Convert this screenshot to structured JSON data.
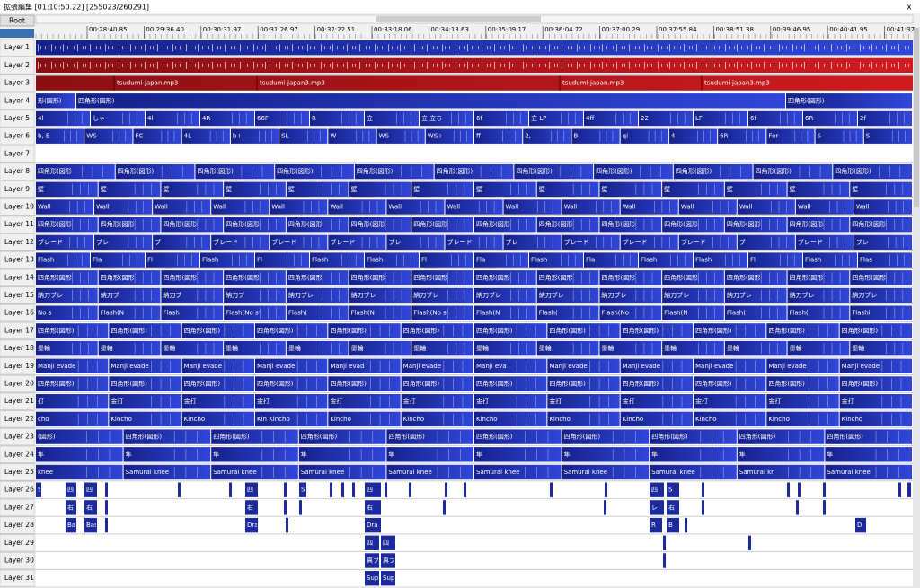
{
  "window": {
    "title": "拡張編集 [01:10:50.22] [255023/260291]",
    "close": "x"
  },
  "toolbar": {
    "root": "Root"
  },
  "ruler": {
    "times": [
      "00:28:40.85",
      "00:29:36.40",
      "00:30:31.97",
      "00:31:26.97",
      "00:32:22.51",
      "00:33:18.06",
      "00:34:13.63",
      "00:35:09.17",
      "00:36:04.72",
      "00:37:00.29",
      "00:37:55.84",
      "00:38:51.38",
      "00:39:46.95",
      "00:40:41.95",
      "00:41:37"
    ]
  },
  "layers": [
    {
      "name": "Layer 1",
      "clips": []
    },
    {
      "name": "Layer 2",
      "clips": []
    },
    {
      "name": "Layer 3",
      "clips": [
        "tsudumi-japan.mp3",
        "tsudumi-japan3.mp3",
        "tsudumi-japan.mp3",
        "tsudumi-japan3.mp3"
      ]
    },
    {
      "name": "Layer 4",
      "clips": [
        "形(図形)",
        "四角形(図形)",
        "四角形(図形)"
      ]
    },
    {
      "name": "Layer 5",
      "clips": [
        "4l",
        "しゃ",
        "4l",
        "4R",
        "66F",
        "R",
        "立",
        "立 立ち",
        "6f",
        "立 LP",
        "4ff",
        "22",
        "LF",
        "6f",
        "6R",
        "2f"
      ]
    },
    {
      "name": "Layer 6",
      "clips": [
        "b, E",
        "WS",
        "FC",
        "4L",
        "b+",
        "SL",
        "W",
        "WS",
        "WS+",
        "ff",
        "2,",
        "B",
        "qi",
        "4",
        "6R",
        "For",
        "S",
        "S"
      ]
    },
    {
      "name": "Layer 7",
      "clips": []
    },
    {
      "name": "Layer 8",
      "clips": [
        "四角形(図形",
        "四角形(図形)",
        "四角形(図形)",
        "四角形(図形)",
        "四角形(図形)",
        "四角形(図形)",
        "四角形(図形)",
        "四角形(図形)",
        "四角形(図形)",
        "四角形(図形)",
        "四角形(図形)"
      ]
    },
    {
      "name": "Layer 9",
      "clips": [
        "壁",
        "壁",
        "壁",
        "壁",
        "壁",
        "壁",
        "壁",
        "壁",
        "壁",
        "壁",
        "壁",
        "壁",
        "壁",
        "壁"
      ]
    },
    {
      "name": "Layer 10",
      "clips": [
        "Wall",
        "Wall",
        "Wall",
        "Wall",
        "Wall",
        "Wall",
        "Wall",
        "Wall",
        "Wall",
        "Wall",
        "Wall",
        "Wall",
        "Wall",
        "Wall",
        "Wall"
      ]
    },
    {
      "name": "Layer 11",
      "clips": [
        "四角形(図形)",
        "四角形(図形)",
        "四角形(図形)",
        "四角形(図形)",
        "四角形(図形)",
        "四角形(図形)",
        "四角形(図形)",
        "四角形(図形)",
        "四角形(図形)",
        "四角形(図形)",
        "四角形(図形)",
        "四角形(図形)",
        "四角形(図形)",
        "四角形(図形)"
      ]
    },
    {
      "name": "Layer 12",
      "clips": [
        "ブレード",
        "ブレ",
        "ブ",
        "ブレード",
        "ブレード",
        "ブレード",
        "ブレ",
        "ブレード",
        "ブレ",
        "ブレード",
        "ブレード",
        "ブレード",
        "ブ",
        "ブレード",
        "ブレ"
      ]
    },
    {
      "name": "Layer 13",
      "clips": [
        "Flash",
        "Fla",
        "Fl",
        "Flash",
        "Fl",
        "Flash",
        "Flash",
        "Fl",
        "Fla",
        "Flash",
        "Fla",
        "Flash",
        "Flash",
        "Fl",
        "Flash",
        "Flas"
      ]
    },
    {
      "name": "Layer 14",
      "clips": [
        "四角形(図形)",
        "四角形(図形)",
        "四角形(図形)",
        "四角形(図形)",
        "四角形(図形)",
        "四角形(図形)",
        "四角形(図形)",
        "四角形(図形)",
        "四角形(図形)",
        "四角形(図形)",
        "四角形(図形)",
        "四角形(図形)",
        "四角形(図形)",
        "四角形(図形)"
      ]
    },
    {
      "name": "Layer 15",
      "clips": [
        "納刀ブレ",
        "納刀ブ",
        "納刀ブ",
        "納刀ブ",
        "納刀ブレ",
        "納刀ブレ",
        "納刀ブレ",
        "納刀ブレ",
        "納刀ブレ",
        "納刀ブレ",
        "納刀ブレ",
        "納刀ブレ",
        "納刀ブレ",
        "納刀ブレ"
      ]
    },
    {
      "name": "Layer 16",
      "clips": [
        "No s",
        "Flash(N",
        "Flash",
        "Flash(No sv",
        "Flash(",
        "Flash(N",
        "Flash(No sv",
        "Flash(N",
        "Flash(",
        "Flash(No",
        "Flash(N",
        "Flash(",
        "Flash(",
        "Flashi"
      ]
    },
    {
      "name": "Layer 17",
      "clips": [
        "四角形(図形)",
        "四角形(図形)",
        "四角形(図形)",
        "四角形(図形)",
        "四角形(図形)",
        "四角形(図形)",
        "四角形(図形)",
        "四角形(図形)",
        "四角形(図形)",
        "四角形(図形)",
        "四角形(図形)",
        "四角形(図形)"
      ]
    },
    {
      "name": "Layer 18",
      "clips": [
        "墨輪",
        "墨輪",
        "墨輪",
        "墨輪",
        "墨輪",
        "墨輪",
        "墨輪",
        "墨輪",
        "墨輪",
        "墨輪",
        "墨輪",
        "墨輪",
        "墨輪",
        "墨輪"
      ]
    },
    {
      "name": "Layer 19",
      "clips": [
        "Manji evade",
        "Manji evade",
        "Manji evade",
        "Manji evade",
        "Manji evad",
        "Manji evade",
        "Manji eva",
        "Manji evade",
        "Manji evade",
        "Manji evade",
        "Manji evade",
        "Manji evade"
      ]
    },
    {
      "name": "Layer 20",
      "clips": [
        "四角形(図形)",
        "四角形(図形)",
        "四角形(図形)",
        "四角形(図形)",
        "四角形(図形)",
        "四角形(図形)",
        "四角形(図形)",
        "四角形(図形)",
        "四角形(図形)",
        "四角形(図形)",
        "四角形(図形)",
        "四角形(図形)"
      ]
    },
    {
      "name": "Layer 21",
      "clips": [
        "打",
        "金打",
        "金打",
        "金打",
        "金打",
        "金打",
        "金打",
        "金打",
        "金打",
        "金打",
        "金打",
        "金打"
      ]
    },
    {
      "name": "Layer 22",
      "clips": [
        "cho",
        "Kincho",
        "Kincho",
        "Kin Kincho",
        "Kincho",
        "Kincho",
        "Kincho",
        "Kincho",
        "Kincho",
        "Kincho",
        "Kincho",
        "Kincho"
      ]
    },
    {
      "name": "Layer 23",
      "clips": [
        "(図形)",
        "四角形(図形)",
        "四角形(図形)",
        "四角形(図形)",
        "四角形(図形)",
        "四角形(図形)",
        "四角形(図形)",
        "四角形(図形)",
        "四角形(図形)",
        "四角形(図形)"
      ]
    },
    {
      "name": "Layer 24",
      "clips": [
        "隼",
        "隼",
        "隼",
        "隼",
        "隼",
        "隼",
        "隼",
        "隼",
        "隼",
        "隼"
      ]
    },
    {
      "name": "Layer 25",
      "clips": [
        "knee",
        "Samurai knee",
        "Samurai knee",
        "Samurai knee",
        "Samurai knee",
        "Samurai knee",
        "Samurai knee",
        "Samurai knee",
        "Samurai kr",
        "Samurai knee"
      ]
    },
    {
      "name": "Layer 26",
      "clips": [
        "S",
        "四",
        "四",
        "四",
        "S",
        "四",
        "四",
        "S"
      ]
    },
    {
      "name": "Layer 27",
      "clips": [
        "右",
        "右",
        "右",
        "右",
        "レ",
        "右"
      ]
    },
    {
      "name": "Layer 28",
      "clips": [
        "Ba",
        "Bas",
        "Dra",
        "Dra",
        "R",
        "B",
        "D"
      ]
    },
    {
      "name": "Layer 29",
      "clips": [
        "四",
        "四"
      ]
    },
    {
      "name": "Layer 30",
      "clips": [
        "真ブ",
        "真ブ"
      ]
    },
    {
      "name": "Layer 31",
      "clips": [
        "Sup",
        "Supe"
      ]
    }
  ]
}
